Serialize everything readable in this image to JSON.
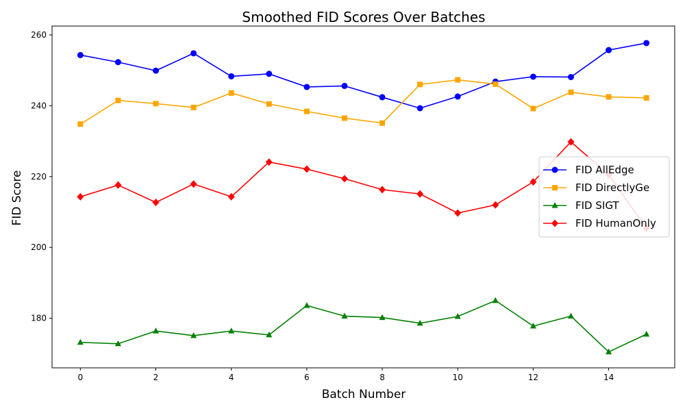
{
  "chart_data": {
    "type": "line",
    "title": "Smoothed FID Scores Over Batches",
    "xlabel": "Batch Number",
    "ylabel": "FID Score",
    "x": [
      0,
      1,
      2,
      3,
      4,
      5,
      6,
      7,
      8,
      9,
      10,
      11,
      12,
      13,
      14,
      15
    ],
    "xlim": [
      -0.75,
      15.75
    ],
    "ylim": [
      166,
      262.5
    ],
    "xticks": [
      0,
      2,
      4,
      6,
      8,
      10,
      12,
      14
    ],
    "yticks": [
      180,
      200,
      220,
      240,
      260
    ],
    "grid": false,
    "legend_position": "center-right",
    "series": [
      {
        "name": "FID AllEdge",
        "color": "#0000ff",
        "marker": "circle",
        "values": [
          254.3,
          252.3,
          249.9,
          254.8,
          248.3,
          249.0,
          245.3,
          245.6,
          242.4,
          239.3,
          242.6,
          246.8,
          248.2,
          248.1,
          255.7,
          257.7
        ]
      },
      {
        "name": "FID DirectlyGe",
        "color": "#ffa500",
        "marker": "square",
        "values": [
          234.8,
          241.5,
          240.6,
          239.5,
          243.6,
          240.5,
          238.4,
          236.5,
          235.1,
          246.0,
          247.3,
          246.1,
          239.2,
          243.8,
          242.5,
          242.2
        ]
      },
      {
        "name": "FID SIGT",
        "color": "#008000",
        "marker": "triangle",
        "values": [
          173.2,
          172.8,
          176.4,
          175.1,
          176.4,
          175.3,
          183.6,
          180.6,
          180.2,
          178.6,
          180.5,
          185.0,
          177.8,
          180.6,
          170.5,
          175.5
        ]
      },
      {
        "name": "FID HumanOnly",
        "color": "#ff0000",
        "marker": "diamond",
        "values": [
          214.3,
          217.6,
          212.7,
          217.9,
          214.3,
          224.1,
          222.1,
          219.4,
          216.3,
          215.1,
          209.7,
          212.0,
          218.5,
          229.8,
          220.5,
          205.4
        ]
      }
    ]
  }
}
